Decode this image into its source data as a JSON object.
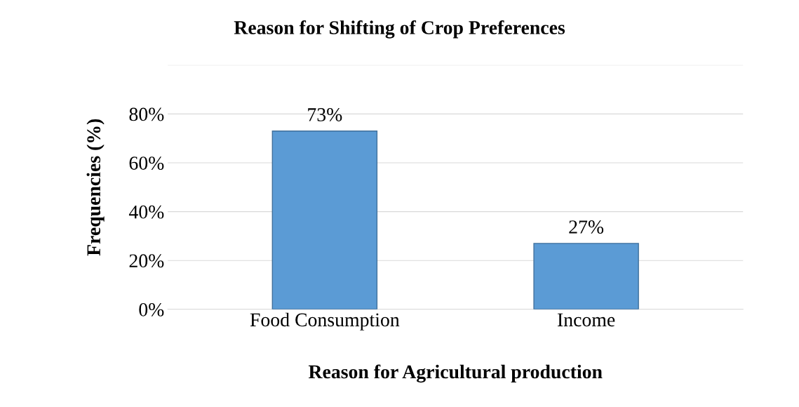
{
  "chart_data": {
    "type": "bar",
    "title": "Reason for Shifting of Crop Preferences",
    "xlabel": "Reason for Agricultural production",
    "ylabel": "Frequencies (%)",
    "categories": [
      "Food Consumption",
      "Income"
    ],
    "values": [
      73,
      27
    ],
    "color": "#5b9bd5",
    "value_labels": [
      "73%",
      "27%"
    ],
    "ylim": [
      0,
      100
    ],
    "yticks": [
      {
        "value": 0,
        "label": "0%"
      },
      {
        "value": 20,
        "label": "20%"
      },
      {
        "value": 40,
        "label": "40%"
      },
      {
        "value": 60,
        "label": "60%"
      },
      {
        "value": 80,
        "label": "80%"
      },
      {
        "value": 100,
        "label": null
      }
    ],
    "grid": "y",
    "legend": false
  }
}
